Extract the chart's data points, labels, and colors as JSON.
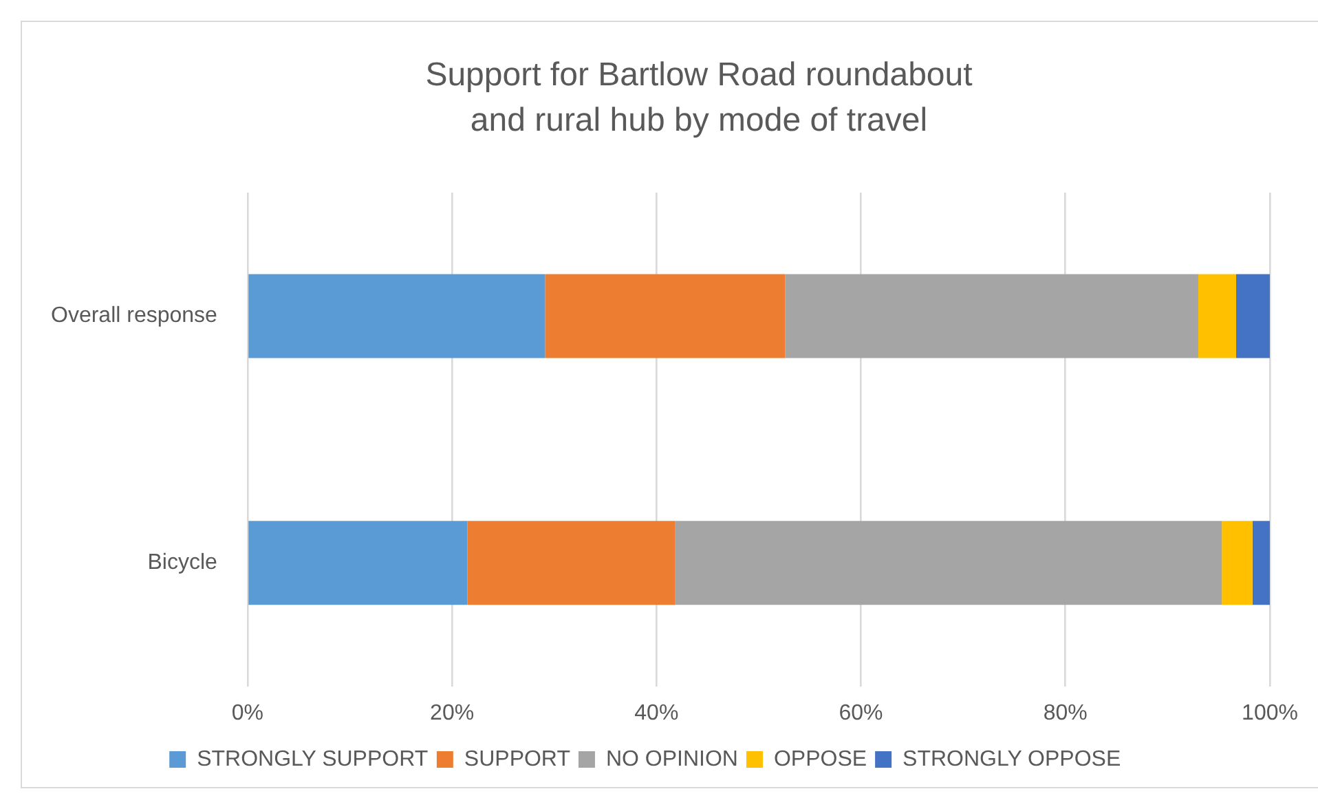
{
  "chart_data": {
    "type": "bar",
    "orientation": "horizontal",
    "stacked": true,
    "title": "Support for Bartlow Road roundabout and rural hub by mode of travel",
    "categories": [
      "Overall response",
      "Bicycle"
    ],
    "series": [
      {
        "name": "STRONGLY SUPPORT",
        "color": "#5b9bd5",
        "values": [
          29.1,
          21.5
        ]
      },
      {
        "name": "SUPPORT",
        "color": "#ed7d31",
        "values": [
          23.5,
          20.3
        ]
      },
      {
        "name": "NO OPINION",
        "color": "#a5a5a5",
        "values": [
          40.4,
          53.5
        ]
      },
      {
        "name": "OPPOSE",
        "color": "#ffc000",
        "values": [
          3.7,
          3.0
        ]
      },
      {
        "name": "STRONGLY OPPOSE",
        "color": "#4472c4",
        "values": [
          3.3,
          1.7
        ]
      }
    ],
    "xlim": [
      0,
      100
    ],
    "xticks": [
      {
        "value": 0,
        "label": "0%"
      },
      {
        "value": 20,
        "label": "20%"
      },
      {
        "value": 40,
        "label": "40%"
      },
      {
        "value": 60,
        "label": "60%"
      },
      {
        "value": 80,
        "label": "80%"
      },
      {
        "value": 100,
        "label": "100%"
      }
    ],
    "grid": "x",
    "legend": "bottom"
  }
}
